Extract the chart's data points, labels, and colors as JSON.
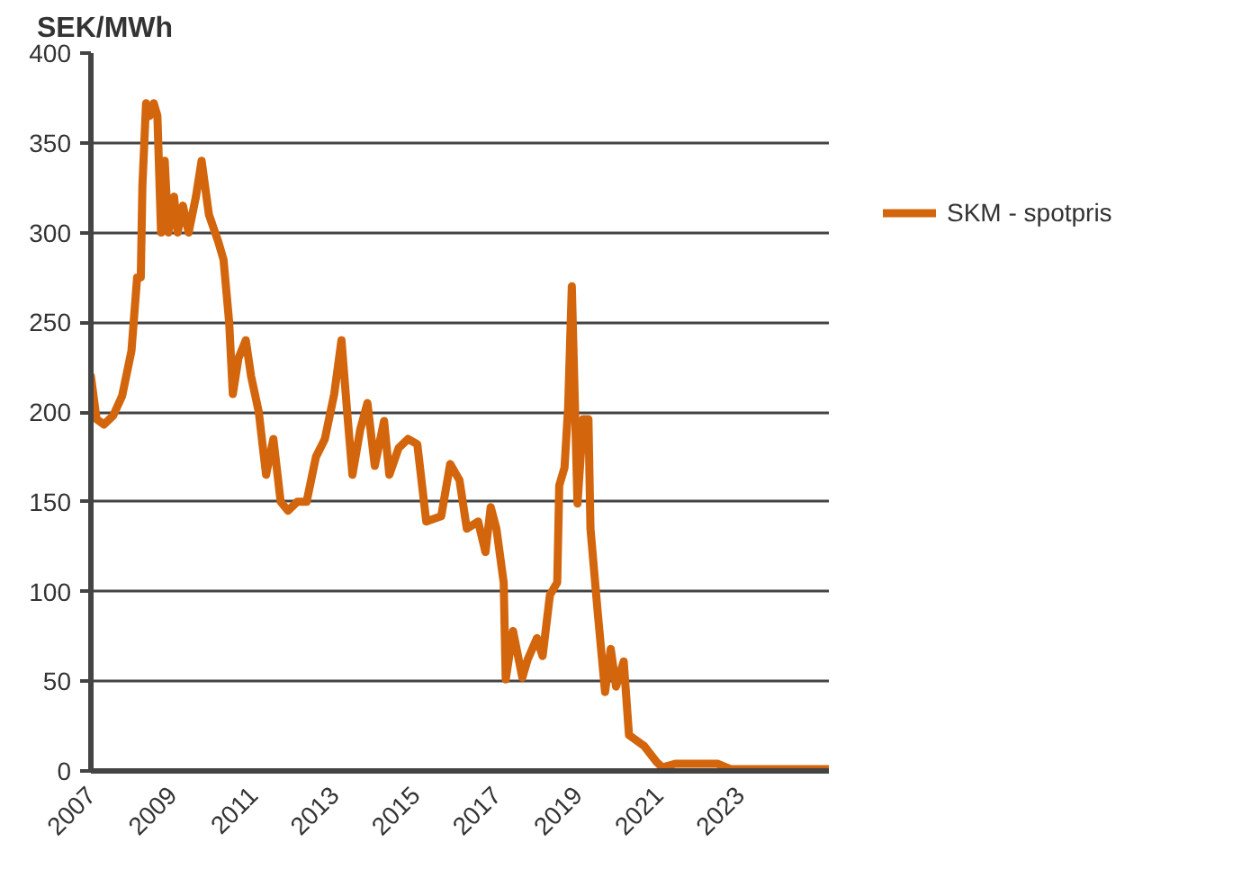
{
  "chart_data": {
    "type": "line",
    "ylabel": "SEK/MWh",
    "xlim": [
      2007,
      2025.2
    ],
    "xticks": [
      2007,
      2009,
      2011,
      2013,
      2015,
      2017,
      2019,
      2021,
      2023
    ],
    "ylim": [
      0,
      400
    ],
    "yticks": [
      0,
      50,
      100,
      150,
      200,
      250,
      300,
      350,
      400
    ],
    "grid": "y",
    "legend": "right",
    "line_style": "solid",
    "series": [
      {
        "name": "SKM - spotpris",
        "color": "#d3650c",
        "x": [
          2007.0,
          2007.14,
          2007.32,
          2007.55,
          2007.77,
          2008.0,
          2008.14,
          2008.23,
          2008.27,
          2008.36,
          2008.45,
          2008.55,
          2008.64,
          2008.73,
          2008.82,
          2008.91,
          2009.05,
          2009.14,
          2009.27,
          2009.41,
          2009.59,
          2009.73,
          2009.91,
          2010.14,
          2010.27,
          2010.41,
          2010.5,
          2010.64,
          2010.82,
          2010.95,
          2011.14,
          2011.32,
          2011.5,
          2011.68,
          2011.86,
          2012.09,
          2012.32,
          2012.55,
          2012.77,
          2013.0,
          2013.18,
          2013.32,
          2013.45,
          2013.64,
          2013.82,
          2014.0,
          2014.23,
          2014.36,
          2014.59,
          2014.82,
          2015.05,
          2015.27,
          2015.64,
          2015.86,
          2016.09,
          2016.27,
          2016.55,
          2016.73,
          2016.86,
          2017.0,
          2017.18,
          2017.23,
          2017.41,
          2017.64,
          2017.77,
          2018.0,
          2018.14,
          2018.32,
          2018.5,
          2018.55,
          2018.68,
          2018.77,
          2018.86,
          2019.0,
          2019.14,
          2019.27,
          2019.32,
          2019.5,
          2019.68,
          2019.82,
          2019.95,
          2020.14,
          2020.27,
          2020.64,
          2020.95,
          2021.09,
          2021.41,
          2022.45,
          2022.77,
          2025.18
        ],
        "values": [
          220,
          196,
          193,
          198,
          209,
          234,
          275,
          275,
          326,
          372,
          365,
          372,
          365,
          300,
          340,
          300,
          320,
          300,
          315,
          300,
          320,
          340,
          310,
          295,
          285,
          250,
          210,
          230,
          240,
          220,
          200,
          165,
          185,
          150,
          145,
          150,
          150,
          175,
          185,
          210,
          240,
          200,
          165,
          190,
          205,
          170,
          195,
          165,
          180,
          185,
          182,
          139,
          142,
          171,
          162,
          135,
          139,
          122,
          147,
          135,
          105,
          51,
          78,
          52,
          62,
          74,
          64,
          98,
          105,
          159,
          169,
          203,
          270,
          149,
          196,
          196,
          135,
          88,
          44,
          68,
          47,
          61,
          20,
          14,
          5,
          2,
          4,
          4,
          1,
          1
        ]
      }
    ]
  }
}
